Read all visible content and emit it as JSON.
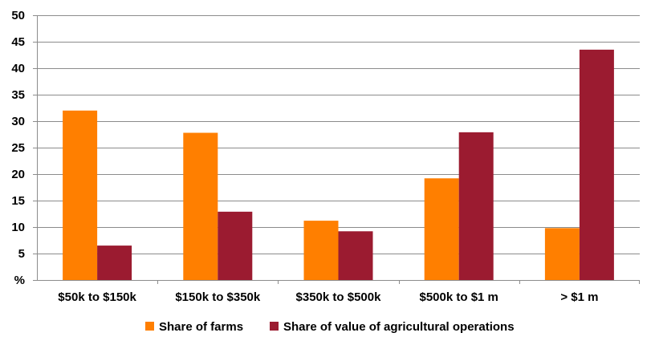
{
  "chart_data": {
    "type": "bar",
    "categories": [
      "$50k to $150k",
      "$150k to $350k",
      "$350k to $500k",
      "$500k to $1 m",
      "> $1 m"
    ],
    "series": [
      {
        "name": "Share of farms",
        "color": "#FF7F00",
        "values": [
          32,
          27.8,
          11.2,
          19.2,
          9.8
        ]
      },
      {
        "name": "Share of value of agricultural operations",
        "color": "#9B1B30",
        "values": [
          6.5,
          12.9,
          9.2,
          27.9,
          43.5
        ]
      }
    ],
    "y_ticks": [
      "%",
      "5",
      "10",
      "15",
      "20",
      "25",
      "30",
      "35",
      "40",
      "45",
      "50"
    ],
    "ylim": [
      0,
      50
    ],
    "y_tick_step": 5,
    "grid": true,
    "legend_position": "bottom"
  }
}
